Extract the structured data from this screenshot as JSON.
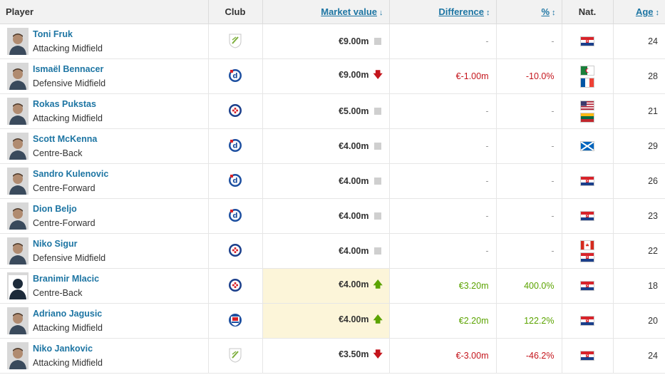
{
  "headers": {
    "player": "Player",
    "club": "Club",
    "market_value": "Market value",
    "difference": "Difference",
    "percent": "%",
    "nat": "Nat.",
    "age": "Age"
  },
  "header_icons": {
    "market_value": "sort-desc-icon",
    "difference": "sort-both-icon",
    "percent": "sort-both-icon",
    "age": "sort-both-icon"
  },
  "colors": {
    "link": "#1d75a3",
    "positive": "#5ba300",
    "negative": "#c4151c",
    "highlight": "#fcf5d9"
  },
  "rows": [
    {
      "name": "Toni Fruk",
      "position": "Attacking Midfield",
      "club_icon": "hnk-rijeka-crest-icon",
      "value": "€9.00m",
      "trend": "neutral",
      "difference": "-",
      "percent": "-",
      "nat": [
        "Croatia"
      ],
      "age": "24",
      "highlight": false
    },
    {
      "name": "Ismaël Bennacer",
      "position": "Defensive Midfield",
      "club_icon": "dinamo-zagreb-crest-icon",
      "value": "€9.00m",
      "trend": "down",
      "difference": "€-1.00m",
      "percent": "-10.0%",
      "nat": [
        "Algeria",
        "France"
      ],
      "age": "28",
      "highlight": false
    },
    {
      "name": "Rokas Pukstas",
      "position": "Attacking Midfield",
      "club_icon": "hajduk-split-crest-icon",
      "value": "€5.00m",
      "trend": "neutral",
      "difference": "-",
      "percent": "-",
      "nat": [
        "United States",
        "Lithuania"
      ],
      "age": "21",
      "highlight": false
    },
    {
      "name": "Scott McKenna",
      "position": "Centre-Back",
      "club_icon": "dinamo-zagreb-crest-icon",
      "value": "€4.00m",
      "trend": "neutral",
      "difference": "-",
      "percent": "-",
      "nat": [
        "Scotland"
      ],
      "age": "29",
      "highlight": false
    },
    {
      "name": "Sandro Kulenovic",
      "position": "Centre-Forward",
      "club_icon": "dinamo-zagreb-crest-icon",
      "value": "€4.00m",
      "trend": "neutral",
      "difference": "-",
      "percent": "-",
      "nat": [
        "Croatia"
      ],
      "age": "26",
      "highlight": false
    },
    {
      "name": "Dion Beljo",
      "position": "Centre-Forward",
      "club_icon": "dinamo-zagreb-crest-icon",
      "value": "€4.00m",
      "trend": "neutral",
      "difference": "-",
      "percent": "-",
      "nat": [
        "Croatia"
      ],
      "age": "23",
      "highlight": false
    },
    {
      "name": "Niko Sigur",
      "position": "Defensive Midfield",
      "club_icon": "hajduk-split-crest-icon",
      "value": "€4.00m",
      "trend": "neutral",
      "difference": "-",
      "percent": "-",
      "nat": [
        "Canada",
        "Croatia"
      ],
      "age": "22",
      "highlight": false
    },
    {
      "name": "Branimir Mlacic",
      "position": "Centre-Back",
      "club_icon": "hajduk-split-crest-icon",
      "value": "€4.00m",
      "trend": "up",
      "difference": "€3.20m",
      "percent": "400.0%",
      "nat": [
        "Croatia"
      ],
      "age": "18",
      "highlight": true
    },
    {
      "name": "Adriano Jagusic",
      "position": "Attacking Midfield",
      "club_icon": "slaven-belupo-crest-icon",
      "value": "€4.00m",
      "trend": "up",
      "difference": "€2.20m",
      "percent": "122.2%",
      "nat": [
        "Croatia"
      ],
      "age": "20",
      "highlight": true
    },
    {
      "name": "Niko Jankovic",
      "position": "Attacking Midfield",
      "club_icon": "hnk-rijeka-crest-icon",
      "value": "€3.50m",
      "trend": "down",
      "difference": "€-3.00m",
      "percent": "-46.2%",
      "nat": [
        "Croatia"
      ],
      "age": "24",
      "highlight": false
    }
  ]
}
